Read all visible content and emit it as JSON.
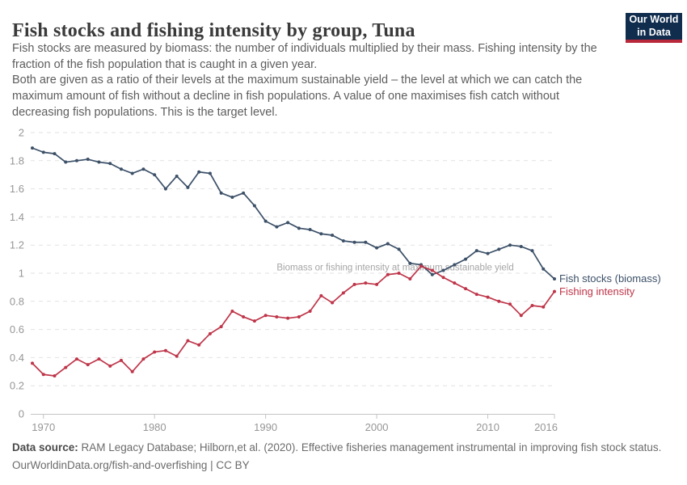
{
  "header": {
    "title": "Fish stocks and fishing intensity by group, Tuna",
    "subtitle_1": "Fish stocks are measured by biomass: the number of individuals multiplied by their mass. Fishing intensity by the fraction of the fish population that is caught in a given year.",
    "subtitle_2": "Both are given as a ratio of their levels at the maximum sustainable yield – the level at which we can catch the maximum amount of fish without a decline in fish populations. A value of one maximises fish catch without decreasing fish populations. This is the target level.",
    "logo": {
      "line1": "Our World",
      "line2": "in Data",
      "bg_color": "#102d4e",
      "bar_color": "#b9273a"
    }
  },
  "chart_data": {
    "type": "line",
    "title": "Fish stocks and fishing intensity by group, Tuna",
    "xlabel": "",
    "ylabel": "",
    "ylim": [
      0,
      2
    ],
    "grid": "horizontal-dashed",
    "legend_position": "right-of-line-ends",
    "x": [
      1969,
      1970,
      1971,
      1972,
      1973,
      1974,
      1975,
      1976,
      1977,
      1978,
      1979,
      1980,
      1981,
      1982,
      1983,
      1984,
      1985,
      1986,
      1987,
      1988,
      1989,
      1990,
      1991,
      1992,
      1993,
      1994,
      1995,
      1996,
      1997,
      1998,
      1999,
      2000,
      2001,
      2002,
      2003,
      2004,
      2005,
      2006,
      2007,
      2008,
      2009,
      2010,
      2011,
      2012,
      2013,
      2014,
      2015,
      2016
    ],
    "series": [
      {
        "name": "Fish stocks (biomass)",
        "color": "#3c5068",
        "values": [
          1.89,
          1.86,
          1.85,
          1.79,
          1.8,
          1.81,
          1.79,
          1.78,
          1.74,
          1.71,
          1.74,
          1.7,
          1.6,
          1.69,
          1.61,
          1.72,
          1.71,
          1.57,
          1.54,
          1.57,
          1.48,
          1.37,
          1.33,
          1.36,
          1.32,
          1.31,
          1.28,
          1.27,
          1.23,
          1.22,
          1.22,
          1.18,
          1.21,
          1.17,
          1.07,
          1.06,
          0.99,
          1.02,
          1.06,
          1.1,
          1.16,
          1.14,
          1.17,
          1.2,
          1.19,
          1.16,
          1.03,
          0.96
        ]
      },
      {
        "name": "Fishing intensity",
        "color": "#bf3549",
        "values": [
          0.36,
          0.28,
          0.27,
          0.33,
          0.39,
          0.35,
          0.39,
          0.34,
          0.38,
          0.3,
          0.39,
          0.44,
          0.45,
          0.41,
          0.52,
          0.49,
          0.57,
          0.62,
          0.73,
          0.69,
          0.66,
          0.7,
          0.69,
          0.68,
          0.69,
          0.73,
          0.84,
          0.79,
          0.86,
          0.92,
          0.93,
          0.92,
          0.99,
          1.0,
          0.96,
          1.05,
          1.02,
          0.97,
          0.93,
          0.89,
          0.85,
          0.83,
          0.8,
          0.78,
          0.7,
          0.77,
          0.76,
          0.87
        ]
      }
    ],
    "ytick_values": [
      0,
      0.2,
      0.4,
      0.6,
      0.8,
      1,
      1.2,
      1.4,
      1.6,
      1.8,
      2
    ],
    "ytick_labels": [
      "0",
      "0.2",
      "0.4",
      "0.6",
      "0.8",
      "1",
      "1.2",
      "1.4",
      "1.6",
      "1.8",
      "2"
    ],
    "xtick_values": [
      1970,
      1980,
      1990,
      2000,
      2010,
      2016
    ],
    "xtick_labels": [
      "1970",
      "1980",
      "1990",
      "2000",
      "2010",
      "2016"
    ],
    "annotation": {
      "text": "Biomass or fishing intensity at maximum sustainable yield",
      "x_year": 1991,
      "y_value": 1.02,
      "color": "#a5a5a5"
    },
    "axis_color": "#c4c4c4",
    "gridline_color": "#e2e2e2",
    "tick_label_color": "#969696"
  },
  "footer": {
    "datasource_label": "Data source:",
    "datasource_text": " RAM Legacy Database; Hilborn,et al. (2020). Effective fisheries management instrumental in improving fish stock status.",
    "link_line": "OurWorldinData.org/fish-and-overfishing | CC BY"
  }
}
